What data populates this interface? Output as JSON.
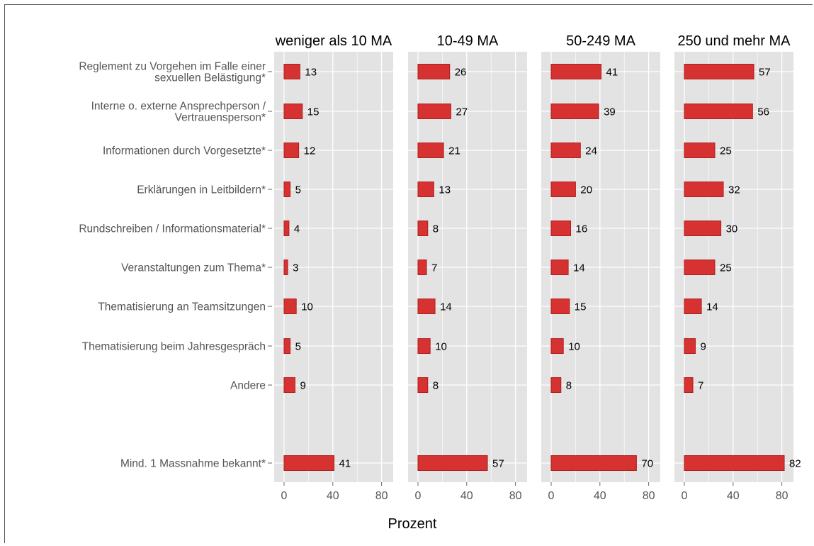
{
  "chart_data": {
    "type": "bar",
    "orientation": "horizontal",
    "xlabel": "Prozent",
    "xlim": [
      0,
      90
    ],
    "xticks": [
      "0",
      "40",
      "80"
    ],
    "grid": true,
    "categories": [
      [
        "Reglement zu Vorgehen im Falle einer",
        "sexuellen Belästigung*"
      ],
      [
        "Interne o. externe Ansprechperson /",
        "Vertrauensperson*"
      ],
      [
        "Informationen durch Vorgesetzte*"
      ],
      [
        "Erklärungen in Leitbildern*"
      ],
      [
        "Rundschreiben / Informationsmaterial*"
      ],
      [
        "Veranstaltungen zum Thema*"
      ],
      [
        "Thematisierung an Teamsitzungen"
      ],
      [
        "Thematisierung beim Jahresgespräch"
      ],
      [
        "Andere"
      ],
      [
        "Mind. 1 Massnahme bekannt*"
      ]
    ],
    "facets": [
      {
        "name": "weniger als 10 MA",
        "values": [
          13,
          15,
          12,
          5,
          4,
          3,
          10,
          5,
          9,
          41
        ]
      },
      {
        "name": "10-49 MA",
        "values": [
          26,
          27,
          21,
          13,
          8,
          7,
          14,
          10,
          8,
          57
        ]
      },
      {
        "name": "50-249 MA",
        "values": [
          41,
          39,
          24,
          20,
          16,
          14,
          15,
          10,
          8,
          70
        ]
      },
      {
        "name": "250 und mehr MA",
        "values": [
          57,
          56,
          25,
          32,
          30,
          25,
          14,
          9,
          7,
          82
        ]
      }
    ],
    "colors": {
      "bar_fill": "#d63232",
      "bar_stroke": "#b01e1e",
      "panel_bg": "#e3e3e3",
      "grid": "#ffffff"
    }
  }
}
